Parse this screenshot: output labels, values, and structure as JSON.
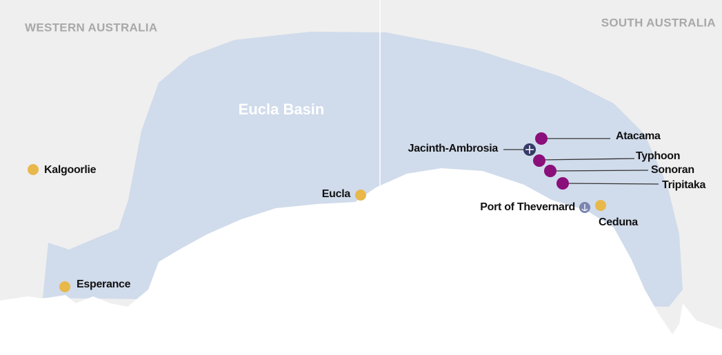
{
  "regions": [
    "WESTERN AUSTRALIA",
    "SOUTH AUSTRALIA"
  ],
  "basin": "Eucla Basin",
  "towns": [
    "Kalgoorlie",
    "Eucla",
    "Esperance",
    "Ceduna"
  ],
  "projects": [
    "Atacama",
    "Typhoon",
    "Sonoran",
    "Tripitaka"
  ],
  "mine": "Jacinth-Ambrosia",
  "port": "Port of Thevernard"
}
